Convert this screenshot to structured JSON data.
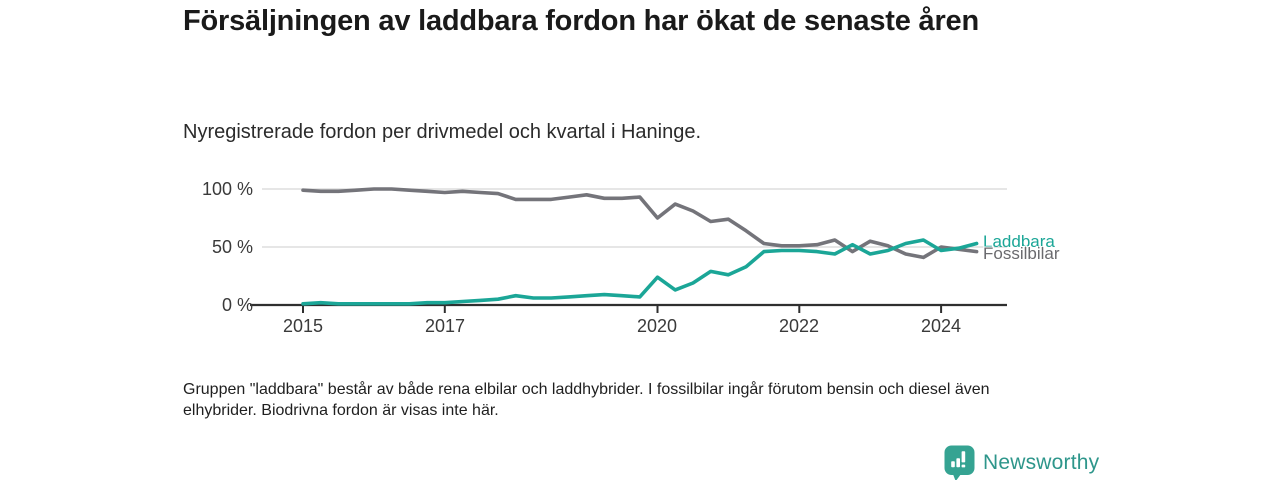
{
  "header": {
    "title": "Försäljningen av laddbara fordon har ökat de senaste åren",
    "subtitle": "Nyregistrerade fordon per drivmedel och kvartal i Haninge."
  },
  "chart_data": {
    "type": "line",
    "title": "Nyregistrerade fordon per drivmedel och kvartal i Haninge",
    "x_unit": "quarter",
    "x_start": "2015 Q1",
    "x_end": "2024 Q3",
    "x_tick_years": [
      2015,
      2017,
      2020,
      2022,
      2024
    ],
    "x_tick_labels": [
      "2015",
      "2017",
      "2020",
      "2022",
      "2024"
    ],
    "y_tick_labels": [
      "100 %",
      "50 %",
      "0 %"
    ],
    "y_ticks": [
      100,
      50,
      0
    ],
    "ylim": [
      0,
      100
    ],
    "grid": "horizontal",
    "legend_position": "right-end-of-line",
    "series": [
      {
        "name": "Laddbara",
        "color": "#1ba697",
        "values": [
          1,
          2,
          1,
          1,
          1,
          1,
          1,
          2,
          2,
          3,
          4,
          5,
          8,
          6,
          6,
          7,
          8,
          9,
          8,
          7,
          24,
          13,
          19,
          29,
          26,
          33,
          46,
          47,
          47,
          46,
          44,
          52,
          44,
          47,
          53,
          56,
          47,
          49,
          53
        ]
      },
      {
        "name": "Fossilbilar",
        "color": "#74747a",
        "values": [
          99,
          98,
          98,
          99,
          100,
          100,
          99,
          98,
          97,
          98,
          97,
          96,
          91,
          91,
          91,
          93,
          95,
          92,
          92,
          93,
          75,
          87,
          81,
          72,
          74,
          64,
          53,
          51,
          51,
          52,
          56,
          46,
          55,
          51,
          44,
          41,
          50,
          48,
          46
        ]
      }
    ],
    "colors": {
      "axis": "#2f2f2f",
      "grid": "#d8d8d8",
      "tick_text": "#3a3a3a"
    }
  },
  "footnote": "Gruppen \"laddbara\" består av både rena elbilar och laddhybrider. I fossilbilar ingår förutom bensin och diesel även elhybrider. Biodrivna fordon är visas inte här.",
  "branding": {
    "logo_text": "Newsworthy",
    "color": "#2e968b",
    "icon_color": "#35a392"
  }
}
